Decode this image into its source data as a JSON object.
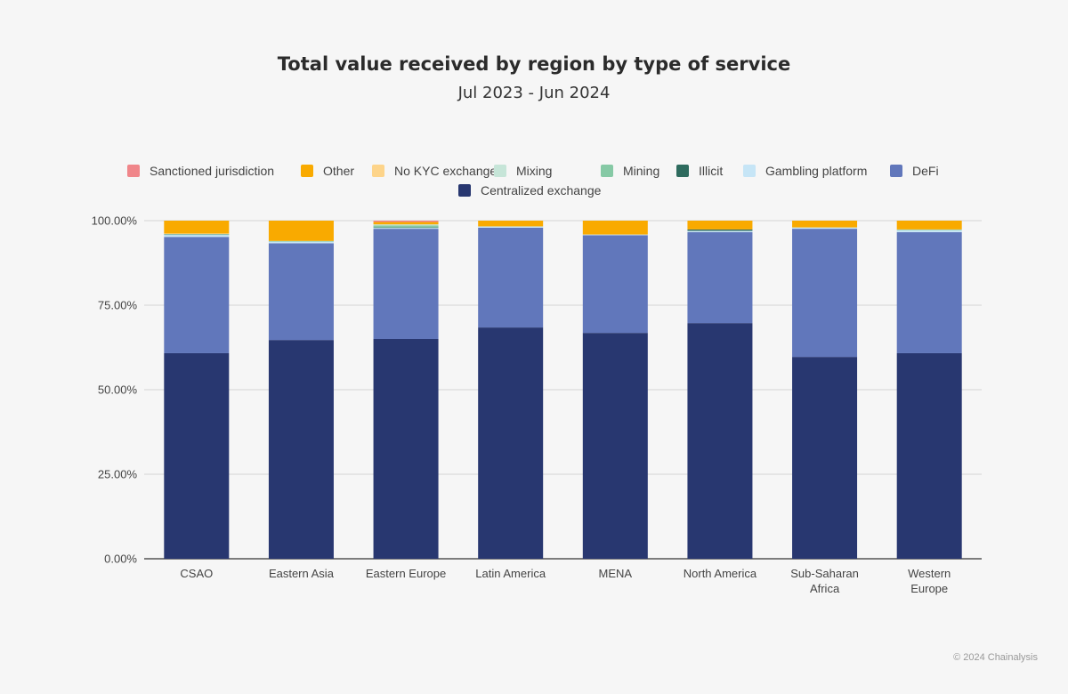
{
  "chart_data": {
    "type": "bar",
    "stacked": true,
    "title": "Total value received by region by type of service",
    "subtitle": "Jul 2023 - Jun 2024",
    "xlabel": "",
    "ylabel": "",
    "ylim": [
      0,
      100
    ],
    "yticks": [
      "0.00%",
      "25.00%",
      "50.00%",
      "75.00%",
      "100.00%"
    ],
    "grid": true,
    "legend_position": "top",
    "categories": [
      "CSAO",
      "Eastern Asia",
      "Eastern Europe",
      "Latin America",
      "MENA",
      "North America",
      "Sub-Saharan Africa",
      "Western Europe"
    ],
    "series": [
      {
        "name": "Centralized exchange",
        "color": "#283770",
        "values": [
          60.8,
          64.7,
          65.0,
          68.4,
          66.8,
          69.7,
          59.7,
          60.8
        ]
      },
      {
        "name": "DeFi",
        "color": "#6177bb",
        "values": [
          34.4,
          28.6,
          32.6,
          29.5,
          28.9,
          26.9,
          37.9,
          35.8
        ]
      },
      {
        "name": "Gambling platform",
        "color": "#c6e5f6",
        "values": [
          0.6,
          0.5,
          0.3,
          0.4,
          0.2,
          0.4,
          0.4,
          0.6
        ]
      },
      {
        "name": "Illicit",
        "color": "#2e6b5e",
        "values": [
          0.1,
          0.0,
          0.1,
          0.0,
          0.0,
          0.4,
          0.0,
          0.0
        ]
      },
      {
        "name": "Mining",
        "color": "#86c9a5",
        "values": [
          0.1,
          0.2,
          0.6,
          0.0,
          0.0,
          0.0,
          0.0,
          0.2
        ]
      },
      {
        "name": "Mixing",
        "color": "#c6e5d8",
        "values": [
          0.1,
          0.0,
          0.3,
          0.0,
          0.0,
          0.0,
          0.0,
          0.0
        ]
      },
      {
        "name": "No KYC exchange",
        "color": "#fdd48a",
        "values": [
          0.1,
          0.0,
          0.0,
          0.0,
          0.0,
          0.0,
          0.0,
          0.0
        ]
      },
      {
        "name": "Other",
        "color": "#f9aa00",
        "values": [
          3.8,
          6.0,
          0.7,
          1.7,
          4.1,
          2.6,
          2.0,
          2.6
        ]
      },
      {
        "name": "Sanctioned jurisdiction",
        "color": "#f0868a",
        "values": [
          0.0,
          0.0,
          0.4,
          0.0,
          0.0,
          0.0,
          0.0,
          0.0
        ]
      }
    ],
    "legend_order": [
      "Sanctioned jurisdiction",
      "Other",
      "No KYC exchange",
      "Mixing",
      "Mining",
      "Illicit",
      "Gambling platform",
      "DeFi",
      "Centralized exchange"
    ]
  },
  "credit": "© 2024 Chainalysis"
}
